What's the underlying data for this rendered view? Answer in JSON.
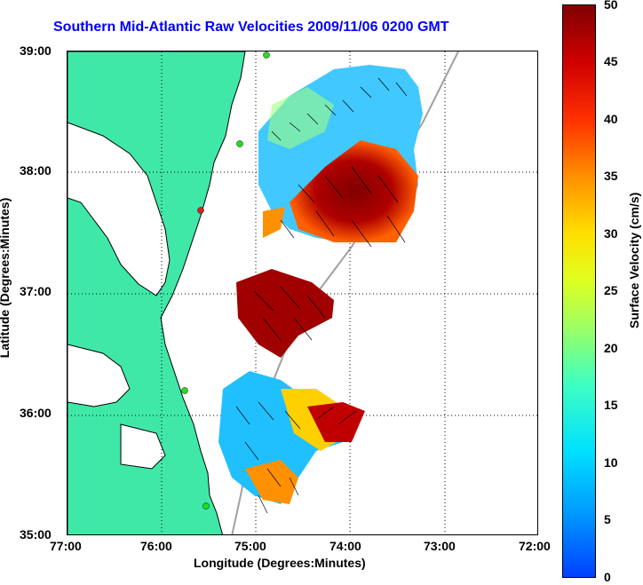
{
  "title": "Southern Mid-Atlantic Raw Velocities 2009/11/06 0200 GMT",
  "axes": {
    "xlabel": "Longitude (Degrees:Minutes)",
    "ylabel": "Latitude (Degrees:Minutes)",
    "xticks": [
      "77:00",
      "76:00",
      "75:00",
      "74:00",
      "73:00",
      "72:00"
    ],
    "yticks": [
      "39:00",
      "38:00",
      "37:00",
      "36:00",
      "35:00"
    ]
  },
  "colorbar": {
    "label": "Surface Velocity (cm/s)",
    "ticks": [
      "50",
      "45",
      "40",
      "35",
      "30",
      "25",
      "20",
      "15",
      "10",
      "5",
      "0"
    ],
    "range": [
      0,
      50
    ]
  },
  "colors": {
    "land": "#40e8a8",
    "title": "#0000ff",
    "station": "#20e020",
    "station_alt": "#e02020"
  }
}
